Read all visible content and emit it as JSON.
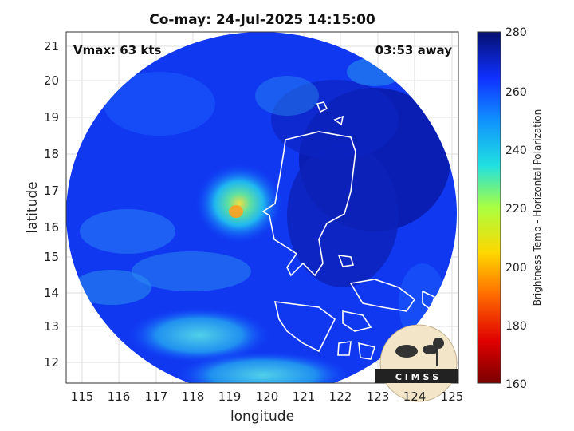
{
  "title": "Co-may: 24-Jul-2025 14:15:00",
  "vmax": "Vmax: 63 kts",
  "time_away": "03:53 away",
  "xlabel": "longitude",
  "ylabel": "latitude",
  "x_ticks": [
    "115",
    "116",
    "117",
    "118",
    "119",
    "120",
    "121",
    "122",
    "123",
    "124",
    "125"
  ],
  "y_ticks": [
    "21",
    "20",
    "19",
    "18",
    "17",
    "16",
    "15",
    "14",
    "13",
    "12"
  ],
  "colorbar": {
    "label": "Brightness Temp - Horizontal Polarization",
    "ticks": [
      "280",
      "260",
      "240",
      "220",
      "200",
      "180",
      "160"
    ],
    "range": [
      160,
      280
    ]
  },
  "logo_text": "C I M S S",
  "colors": {
    "cold_core": "#f0e040",
    "warm_background": "#0a1aa8",
    "coastline": "#ffffff"
  }
}
